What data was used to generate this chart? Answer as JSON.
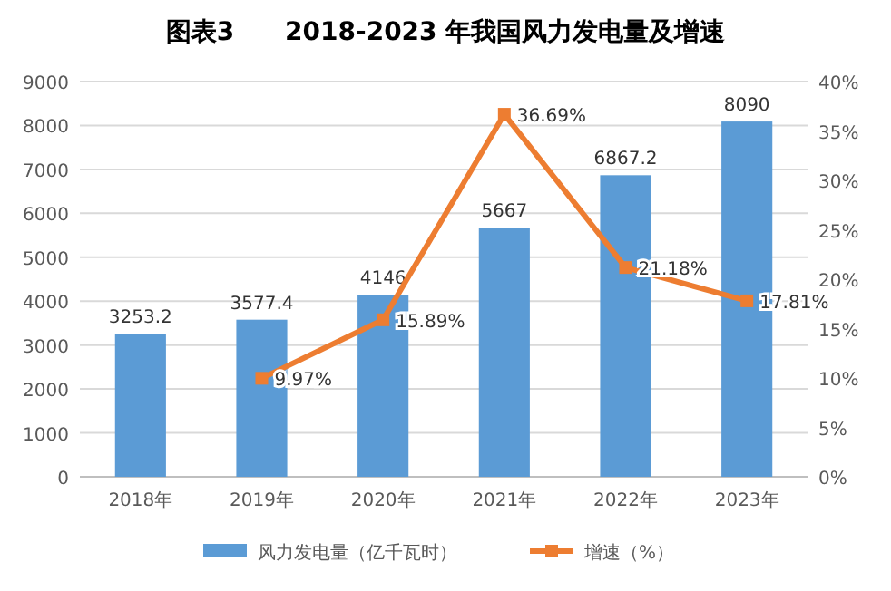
{
  "chart_data": {
    "type": "bar",
    "title": "图表3　　2018-2023 年我国风力发电量及增速",
    "categories": [
      "2018年",
      "2019年",
      "2020年",
      "2021年",
      "2022年",
      "2023年"
    ],
    "series": [
      {
        "name": "风力发电量（亿千瓦时）",
        "color": "#5b9bd5",
        "values": [
          3253.2,
          3577.4,
          4146,
          5667,
          6867.2,
          8090
        ],
        "value_labels": [
          "3253.2",
          "3577.4",
          "4146",
          "5667",
          "6867.2",
          "8090"
        ]
      },
      {
        "name": "增速（%）",
        "type": "line",
        "axis": "y2",
        "color": "#ed7d31",
        "marker": "square",
        "values": [
          null,
          9.97,
          15.89,
          36.69,
          21.18,
          17.81
        ],
        "value_labels": [
          null,
          "9.97%",
          "15.89%",
          "36.69%",
          "21.18%",
          "17.81%"
        ]
      }
    ],
    "ylim": [
      0,
      9000
    ],
    "yticks": [
      0,
      1000,
      2000,
      3000,
      4000,
      5000,
      6000,
      7000,
      8000,
      9000
    ],
    "y2lim": [
      0,
      40
    ],
    "y2ticks": [
      {
        "value": 0,
        "label": "0%"
      },
      {
        "value": 5,
        "label": "5%"
      },
      {
        "value": 10,
        "label": "10%"
      },
      {
        "value": 15,
        "label": "15%"
      },
      {
        "value": 20,
        "label": "20%"
      },
      {
        "value": 25,
        "label": "25%"
      },
      {
        "value": 30,
        "label": "30%"
      },
      {
        "value": 35,
        "label": "35%"
      },
      {
        "value": 40,
        "label": "40%"
      }
    ],
    "grid": "y",
    "legend": "bottom"
  }
}
